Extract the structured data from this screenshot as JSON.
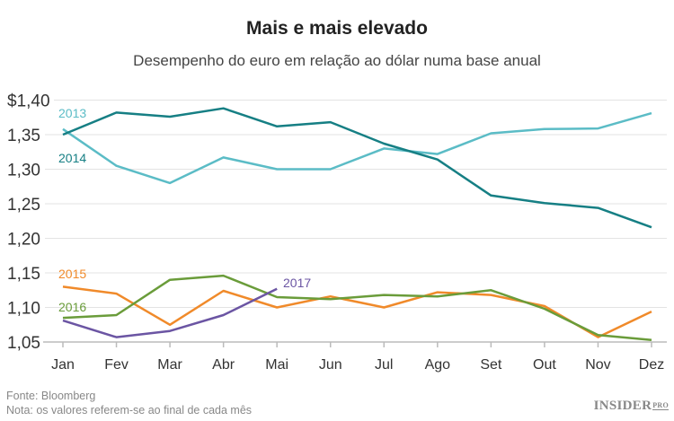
{
  "chart_data": {
    "type": "line",
    "title": "Mais e mais elevado",
    "subtitle": "Desempenho do euro em relação ao dólar numa base anual",
    "xlabel": "",
    "ylabel": "",
    "categories": [
      "Jan",
      "Fev",
      "Mar",
      "Abr",
      "Mai",
      "Jun",
      "Jul",
      "Ago",
      "Set",
      "Out",
      "Nov",
      "Dez"
    ],
    "ylim": [
      1.05,
      1.4
    ],
    "yticks": [
      1.4,
      1.35,
      1.3,
      1.25,
      1.2,
      1.15,
      1.1,
      1.05
    ],
    "ytick_labels": [
      "$1,40",
      "1,35",
      "1,30",
      "1,25",
      "1,20",
      "1,15",
      "1,10",
      "1,05"
    ],
    "grid": true,
    "legend": "inline-labels",
    "series": [
      {
        "name": "2013",
        "color": "#5bbcc6",
        "values": [
          1.358,
          1.305,
          1.28,
          1.317,
          1.3,
          1.3,
          1.33,
          1.322,
          1.352,
          1.358,
          1.359,
          1.381
        ]
      },
      {
        "name": "2014",
        "color": "#167f84",
        "values": [
          1.35,
          1.382,
          1.376,
          1.388,
          1.362,
          1.368,
          1.337,
          1.314,
          1.262,
          1.251,
          1.244,
          1.216
        ]
      },
      {
        "name": "2015",
        "color": "#f08a2a",
        "values": [
          1.13,
          1.12,
          1.075,
          1.124,
          1.1,
          1.116,
          1.1,
          1.122,
          1.118,
          1.102,
          1.057,
          1.094
        ]
      },
      {
        "name": "2016",
        "color": "#6a9c3a",
        "values": [
          1.085,
          1.089,
          1.14,
          1.146,
          1.115,
          1.112,
          1.118,
          1.116,
          1.125,
          1.098,
          1.06,
          1.053
        ]
      },
      {
        "name": "2017",
        "color": "#6b55a3",
        "values": [
          1.081,
          1.057,
          1.066,
          1.089,
          1.127
        ]
      }
    ]
  },
  "footer": {
    "source": "Fonte: Bloomberg",
    "note": "Nota: os valores referem-se ao final de cada mês"
  },
  "brand": {
    "name": "INSIDER",
    "suffix": "PRO"
  }
}
